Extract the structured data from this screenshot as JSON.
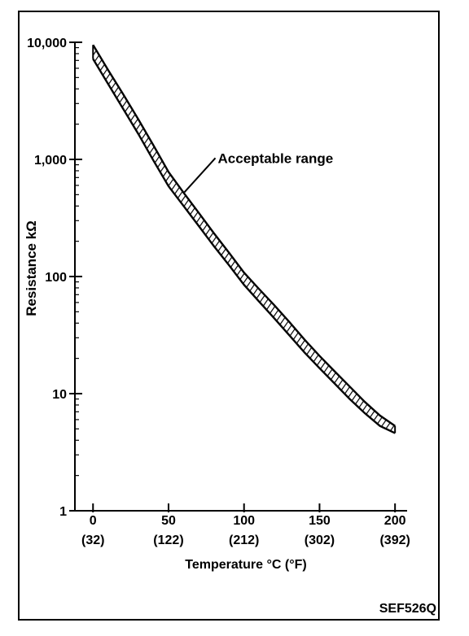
{
  "chart_data": {
    "type": "line",
    "title": "",
    "xlabel": "Temperature °C (°F)",
    "ylabel": "Resistance kΩ",
    "y_scale": "log",
    "xlim": [
      -12,
      208
    ],
    "ylim": [
      1,
      10000
    ],
    "x_ticks": [
      0,
      50,
      100,
      150,
      200
    ],
    "x_tick_labels": [
      "0",
      "50",
      "100",
      "150",
      "200"
    ],
    "x_tick_sublabels": [
      "(32)",
      "(122)",
      "(212)",
      "(302)",
      "(392)"
    ],
    "y_ticks": [
      1,
      10,
      100,
      1000,
      10000
    ],
    "y_tick_labels": [
      "1",
      "10",
      "100",
      "1,000",
      "10,000"
    ],
    "grid": false,
    "legend": "none",
    "series": [
      {
        "x": [
          0,
          10,
          20,
          30,
          40,
          50,
          60,
          70,
          80,
          90,
          100,
          110,
          120,
          130,
          140,
          150,
          160,
          170,
          180,
          190,
          200
        ],
        "upper": [
          9500,
          5800,
          3600,
          2200,
          1320,
          780,
          520,
          350,
          235,
          160,
          108,
          78,
          57,
          41,
          29,
          21,
          15.5,
          11.5,
          8.5,
          6.5,
          5.3
        ],
        "lower": [
          7200,
          4400,
          2700,
          1650,
          980,
          590,
          400,
          270,
          182,
          125,
          85,
          61,
          44,
          31.5,
          22.5,
          16.5,
          12.2,
          9.0,
          6.8,
          5.3,
          4.6
        ]
      }
    ],
    "annotations": [
      {
        "text": "Acceptable range",
        "x": 60,
        "y": 500
      }
    ]
  },
  "figure_code": "SEF526Q",
  "colors": {
    "ink": "#000000",
    "paper": "#ffffff"
  }
}
